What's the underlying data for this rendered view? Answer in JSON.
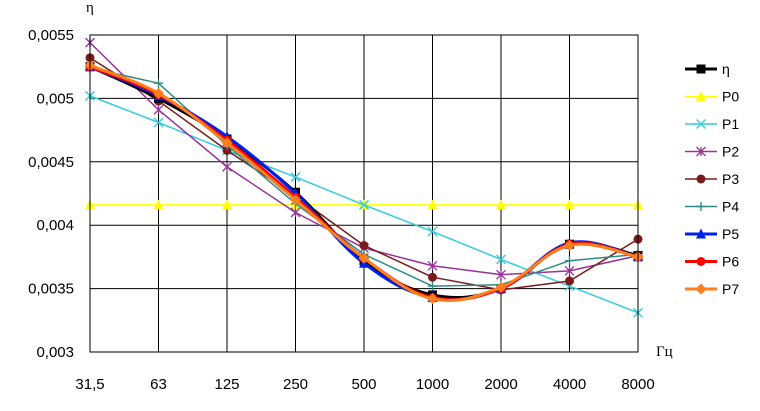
{
  "chart_data": {
    "type": "line",
    "ylabel": "η",
    "xlabel": "Гц",
    "categories": [
      "31,5",
      "63",
      "125",
      "250",
      "500",
      "1000",
      "2000",
      "4000",
      "8000"
    ],
    "ylim": [
      0.003,
      0.0055
    ],
    "yticks": [
      0.003,
      0.0035,
      0.004,
      0.0045,
      0.005,
      0.0055
    ],
    "ytick_labels": [
      "0,003",
      "0,0035",
      "0,004",
      "0,0045",
      "0,005",
      "0,0055"
    ],
    "grid": true,
    "legend_position": "right",
    "series": [
      {
        "name": "η",
        "color": "#000000",
        "marker": "square",
        "smooth": true,
        "width": 3,
        "values": [
          0.00525,
          0.005,
          0.00468,
          0.00426,
          0.00372,
          0.00345,
          0.0035,
          0.00385,
          0.00376
        ]
      },
      {
        "name": "P0",
        "color": "#ffff00",
        "marker": "triangle",
        "smooth": false,
        "width": 1.5,
        "values": [
          0.00416,
          0.00416,
          0.00416,
          0.00416,
          0.00416,
          0.00416,
          0.00416,
          0.00416,
          0.00416
        ]
      },
      {
        "name": "P1",
        "color": "#33ccdd",
        "marker": "x",
        "smooth": false,
        "width": 1.5,
        "values": [
          0.00502,
          0.00481,
          0.00459,
          0.00438,
          0.00416,
          0.00395,
          0.00373,
          0.00352,
          0.00331
        ]
      },
      {
        "name": "P2",
        "color": "#993399",
        "marker": "star",
        "smooth": false,
        "width": 1.5,
        "values": [
          0.00544,
          0.00491,
          0.00446,
          0.0041,
          0.00382,
          0.00368,
          0.00361,
          0.00364,
          0.00376
        ]
      },
      {
        "name": "P3",
        "color": "#7a1a1a",
        "marker": "circle",
        "smooth": false,
        "width": 1.5,
        "values": [
          0.00532,
          0.00498,
          0.00459,
          0.00423,
          0.00384,
          0.00359,
          0.00349,
          0.00356,
          0.00389
        ]
      },
      {
        "name": "P4",
        "color": "#2e8b86",
        "marker": "plus",
        "smooth": false,
        "width": 1.5,
        "values": [
          0.00524,
          0.00512,
          0.00463,
          0.00417,
          0.00377,
          0.00352,
          0.00353,
          0.00372,
          0.00377
        ]
      },
      {
        "name": "P5",
        "color": "#0022ee",
        "marker": "triangle",
        "smooth": true,
        "width": 3,
        "values": [
          0.00525,
          0.00502,
          0.0047,
          0.00425,
          0.0037,
          0.00343,
          0.0035,
          0.00386,
          0.00375
        ]
      },
      {
        "name": "P6",
        "color": "#ff0000",
        "marker": "circle",
        "smooth": true,
        "width": 3,
        "values": [
          0.00525,
          0.00503,
          0.00467,
          0.00422,
          0.00374,
          0.00343,
          0.0035,
          0.00385,
          0.00375
        ]
      },
      {
        "name": "P7",
        "color": "#ff7f1e",
        "marker": "diamond",
        "smooth": true,
        "width": 3,
        "values": [
          0.00526,
          0.00504,
          0.00465,
          0.0042,
          0.00374,
          0.00342,
          0.00351,
          0.00384,
          0.00375
        ]
      }
    ]
  }
}
